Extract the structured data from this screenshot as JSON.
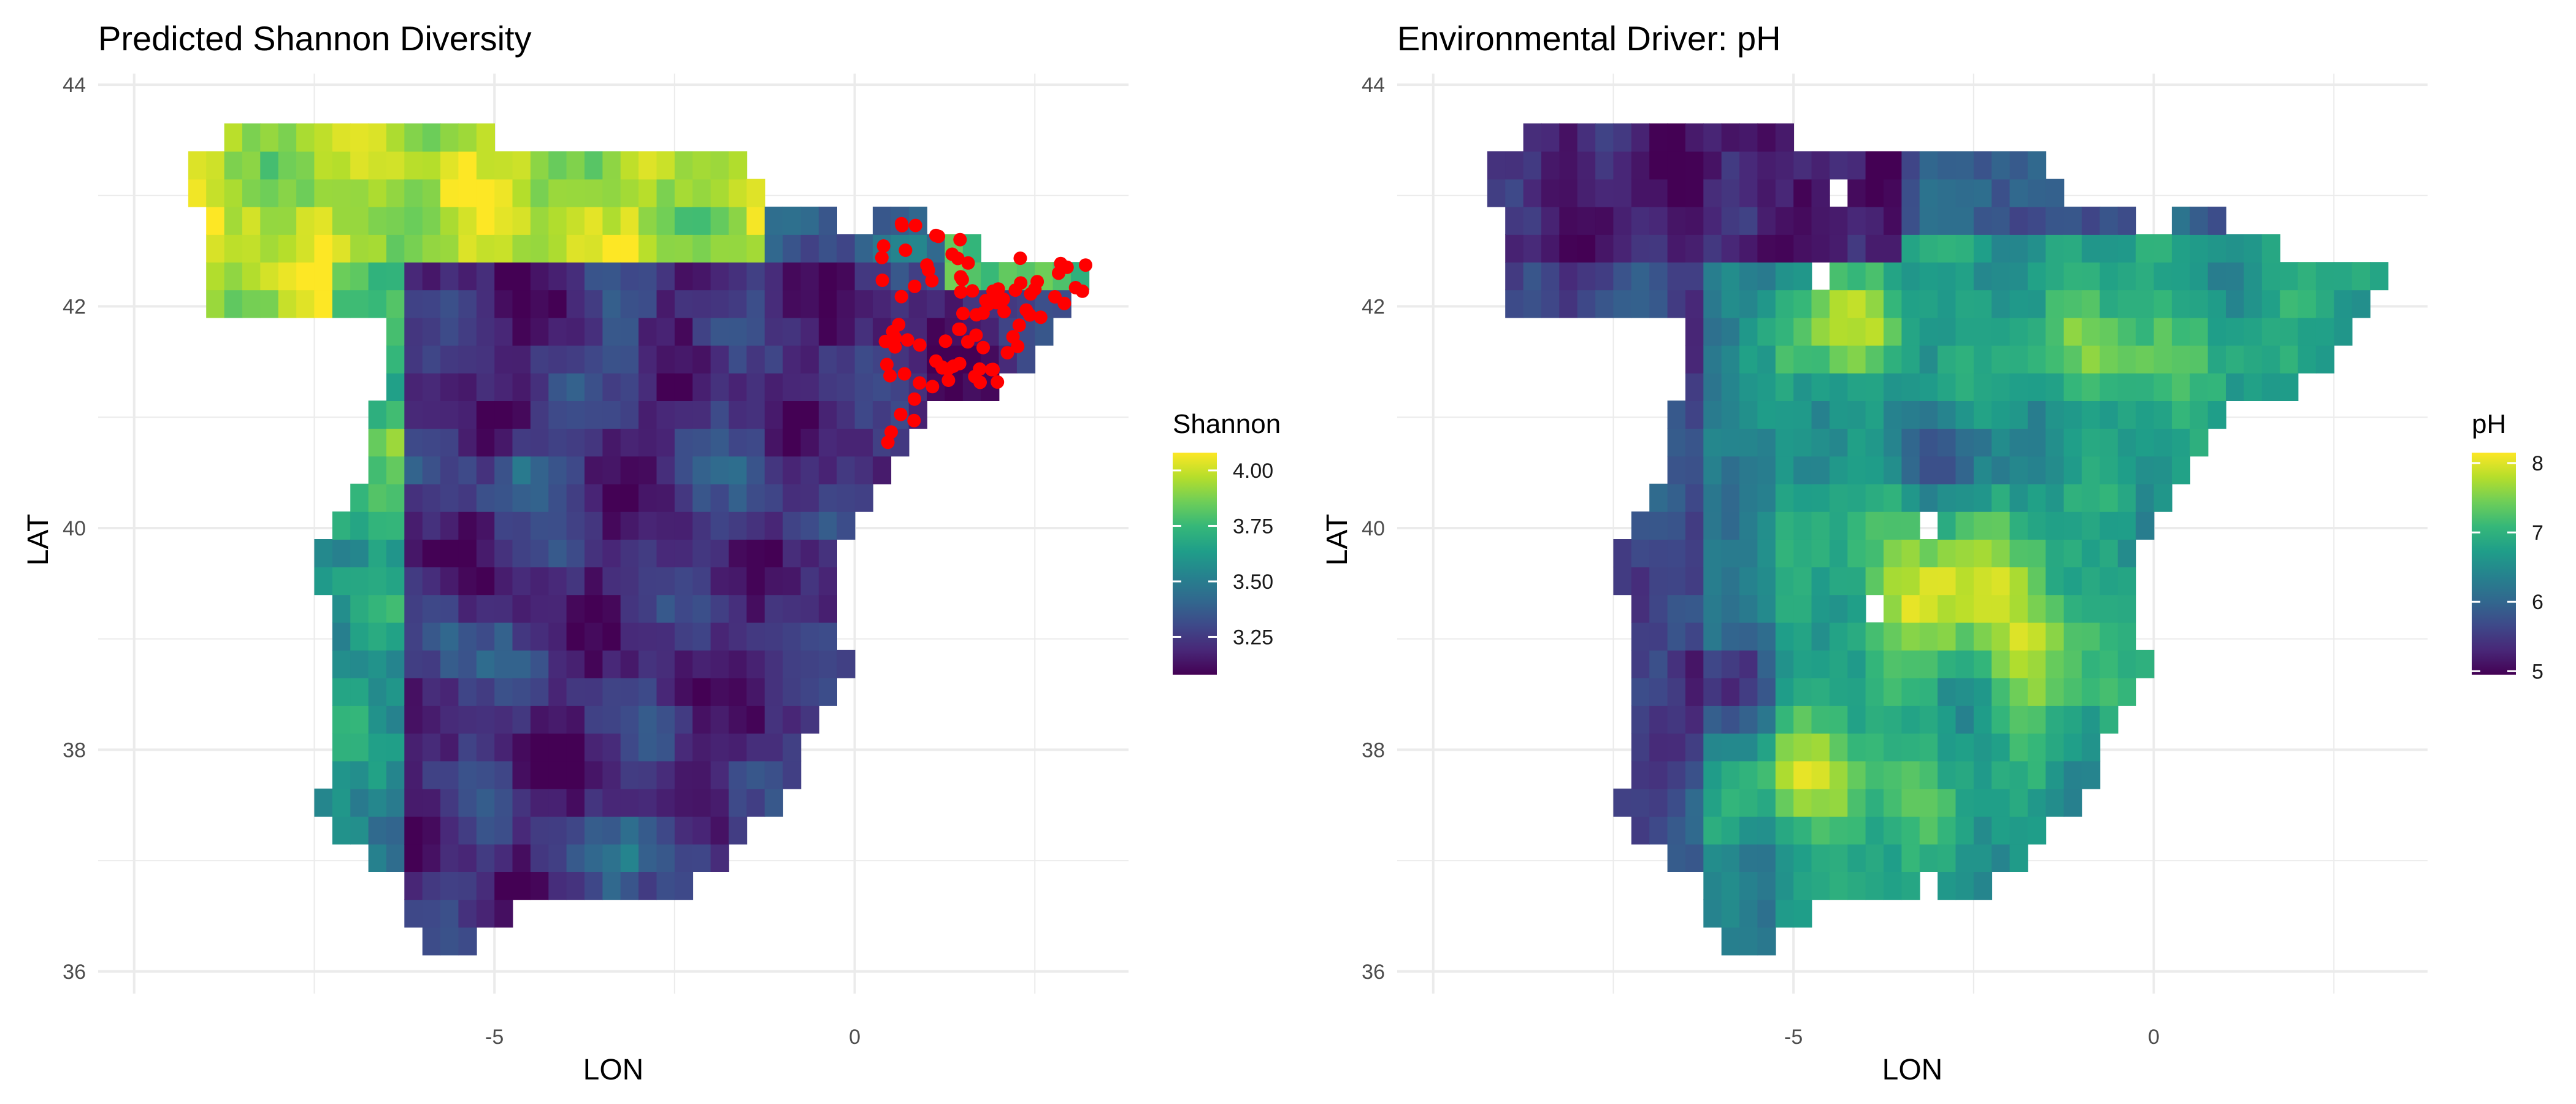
{
  "chart_data": [
    {
      "type": "heatmap",
      "title": "Predicted Shannon Diversity",
      "xlabel": "LON",
      "ylabel": "LAT",
      "x_ticks": [
        -5,
        0
      ],
      "y_ticks": [
        36,
        38,
        40,
        42,
        44
      ],
      "xlim": [
        -10.5,
        3.8
      ],
      "ylim": [
        35.8,
        44.1
      ],
      "grid": true,
      "cell_size_deg": 0.25,
      "legend": {
        "title": "Shannon",
        "ticks": [
          3.25,
          3.5,
          3.75,
          4.0
        ],
        "tick_labels": [
          "3.25",
          "3.50",
          "3.75",
          "4.00"
        ],
        "range": [
          3.08,
          4.08
        ],
        "placement": "right"
      },
      "colormap": "viridis",
      "point_color": "#ff0000",
      "points_lon_range": [
        0.3,
        3.3
      ],
      "points_lat_range": [
        40.75,
        42.75
      ],
      "points_count": 90
    },
    {
      "type": "heatmap",
      "title": "Environmental Driver: pH",
      "xlabel": "LON",
      "ylabel": "LAT",
      "x_ticks": [
        -5,
        0
      ],
      "y_ticks": [
        36,
        38,
        40,
        42,
        44
      ],
      "xlim": [
        -10.5,
        3.8
      ],
      "ylim": [
        35.8,
        44.1
      ],
      "grid": true,
      "cell_size_deg": 0.25,
      "legend": {
        "title": "pH",
        "ticks": [
          5,
          6,
          7,
          8
        ],
        "tick_labels": [
          "5",
          "6",
          "7",
          "8"
        ],
        "range": [
          4.95,
          8.15
        ],
        "placement": "right"
      },
      "colormap": "viridis"
    }
  ],
  "colors": {
    "viridis": [
      "#440154",
      "#482878",
      "#3e4989",
      "#31688e",
      "#26828e",
      "#1f9e89",
      "#35b779",
      "#6ece58",
      "#b5de2b",
      "#fde725"
    ],
    "grid": "#ebebeb",
    "points": "#ff0000"
  }
}
